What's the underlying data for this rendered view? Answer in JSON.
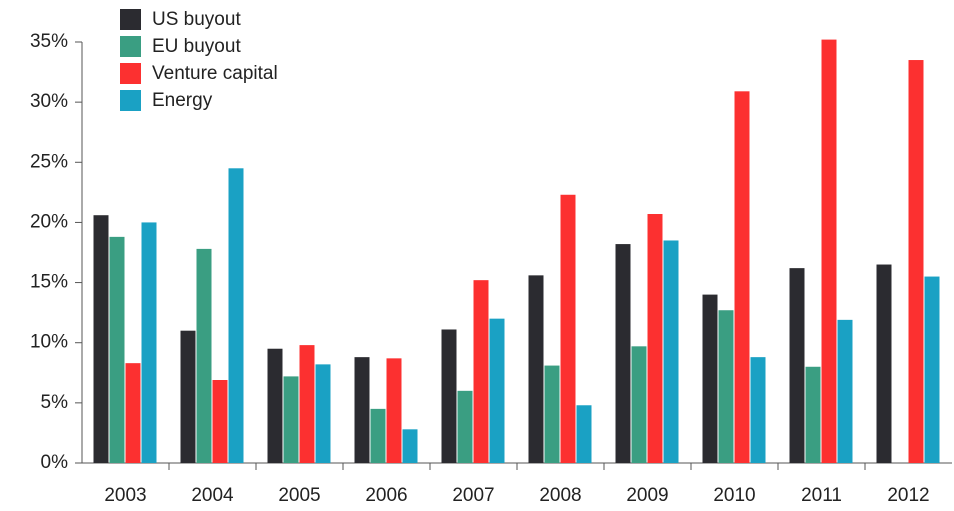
{
  "chart_data": {
    "type": "bar",
    "categories": [
      "2003",
      "2004",
      "2005",
      "2006",
      "2007",
      "2008",
      "2009",
      "2010",
      "2011",
      "2012"
    ],
    "series": [
      {
        "name": "US buyout",
        "color": "#2b2b30",
        "values": [
          20.6,
          11.0,
          9.5,
          8.8,
          11.1,
          15.6,
          18.2,
          14.0,
          16.2,
          16.5
        ]
      },
      {
        "name": "EU buyout",
        "color": "#3a9e82",
        "values": [
          18.8,
          17.8,
          7.2,
          4.5,
          6.0,
          8.1,
          9.7,
          12.7,
          8.0,
          null
        ]
      },
      {
        "name": "Venture capital",
        "color": "#fc3030",
        "values": [
          8.3,
          6.9,
          9.8,
          8.7,
          15.2,
          22.3,
          20.7,
          30.9,
          35.2,
          33.5
        ]
      },
      {
        "name": "Energy",
        "color": "#1aa1c4",
        "values": [
          20.0,
          24.5,
          8.2,
          2.8,
          12.0,
          4.8,
          18.5,
          8.8,
          11.9,
          15.5
        ]
      }
    ],
    "ylim": [
      0,
      35
    ],
    "yticks": [
      {
        "value": 0,
        "label": "0%"
      },
      {
        "value": 5,
        "label": "5%"
      },
      {
        "value": 10,
        "label": "10%"
      },
      {
        "value": 15,
        "label": "15%"
      },
      {
        "value": 20,
        "label": "20%"
      },
      {
        "value": 25,
        "label": "25%"
      },
      {
        "value": 30,
        "label": "30%"
      },
      {
        "value": 35,
        "label": "35%"
      }
    ],
    "grid": false,
    "legend": "top-left"
  }
}
